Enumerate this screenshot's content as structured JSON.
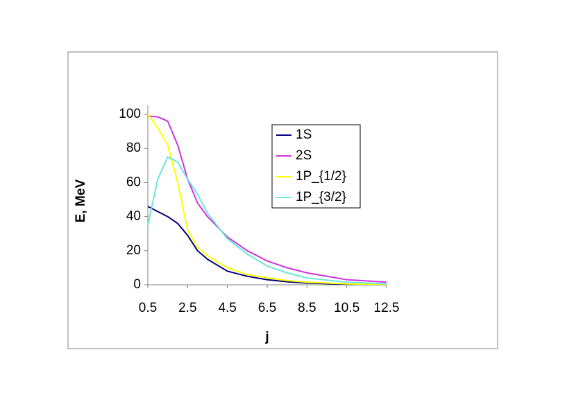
{
  "chart_data": {
    "type": "line",
    "x_label": "j",
    "y_label": "E, MeV",
    "x": [
      0.5,
      1,
      1.5,
      2,
      2.5,
      3,
      3.5,
      4.5,
      5.5,
      6.5,
      7.5,
      8.5,
      10.5,
      12.5
    ],
    "series": [
      {
        "name": "1S",
        "color": "#000080",
        "values": [
          46,
          43,
          40,
          36,
          29,
          20,
          15,
          8,
          5,
          3,
          1.8,
          1,
          0.3,
          0.1
        ]
      },
      {
        "name": "2S",
        "color": "#cc33dd",
        "values": [
          99,
          98.5,
          96,
          82,
          62,
          48,
          40,
          28,
          20,
          14,
          10,
          7,
          3,
          1.5
        ]
      },
      {
        "name": "1P_{1/2}",
        "color": "#ffff00",
        "values": [
          100,
          92,
          82,
          60,
          32,
          22,
          17,
          10,
          6,
          4,
          2.5,
          1.5,
          0.5,
          0.2
        ]
      },
      {
        "name": "1P_{3/2}",
        "color": "#66e8d8",
        "values": [
          35,
          62,
          75,
          72,
          62,
          53,
          42,
          27,
          18,
          11,
          7,
          4,
          1.5,
          0.5
        ]
      }
    ],
    "xlim": [
      0.5,
      12.5
    ],
    "xticks": [
      0.5,
      2.5,
      4.5,
      6.5,
      8.5,
      10.5,
      12.5
    ],
    "ylim": [
      0,
      100
    ],
    "yticks": [
      0,
      20,
      40,
      60,
      80,
      100
    ],
    "grid": false
  }
}
